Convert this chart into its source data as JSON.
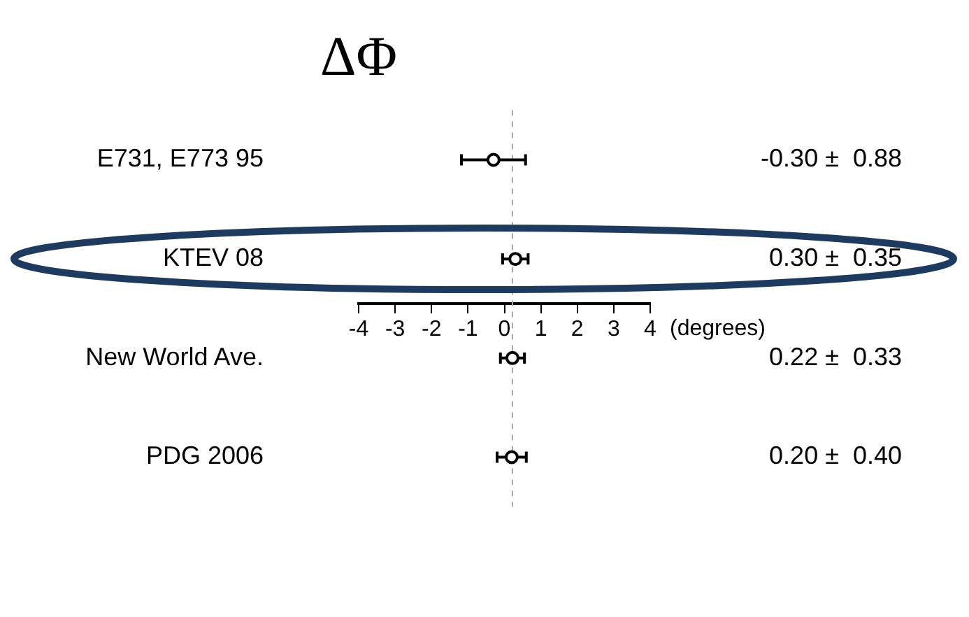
{
  "chart_data": {
    "type": "scatter",
    "title": "ΔΦ",
    "orientation": "horizontal",
    "categories": [
      "E731, E773 95",
      "KTEV 08",
      "New World Ave.",
      "PDG 2006"
    ],
    "values": [
      -0.3,
      0.3,
      0.22,
      0.2
    ],
    "errors": [
      0.88,
      0.35,
      0.33,
      0.4
    ],
    "value_labels": [
      "-0.30 ±  0.88",
      "0.30 ±  0.35",
      "0.22 ±  0.33",
      "0.20 ±  0.40"
    ],
    "color": "#000000",
    "marker": "circle",
    "xlim": [
      -4,
      4
    ],
    "xticks": [
      -4,
      -3,
      -2,
      -1,
      0,
      1,
      2,
      3,
      4
    ],
    "xlabel": "(degrees)",
    "ref_lines": [
      {
        "axis": "x",
        "value": 0.22,
        "color": "#aaaaaa",
        "line_style": "dashed"
      }
    ],
    "grid": false,
    "legend": false
  }
}
